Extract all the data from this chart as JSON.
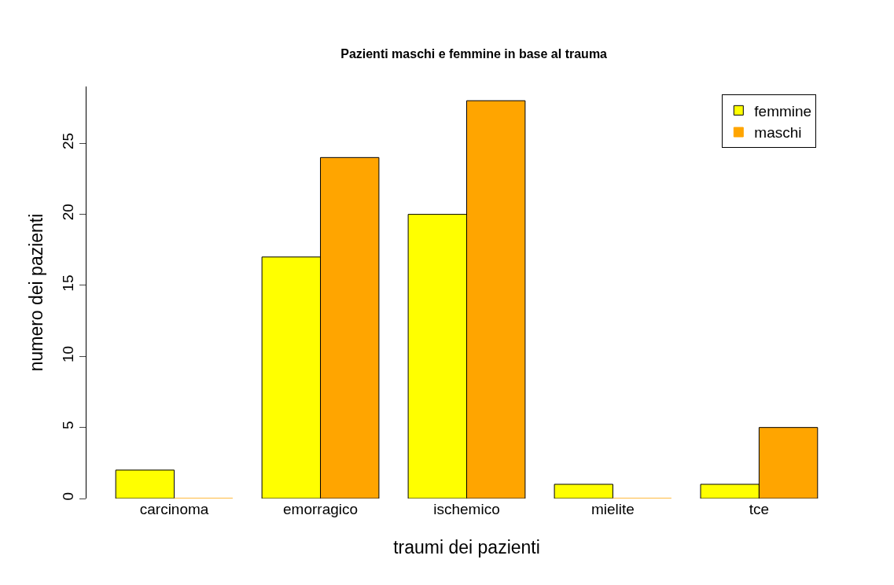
{
  "chart_data": {
    "type": "bar",
    "title": "Pazienti maschi e femmine in base al trauma",
    "xlabel": "traumi dei pazienti",
    "ylabel": "numero dei pazienti",
    "categories": [
      "carcinoma",
      "emorragico",
      "ischemico",
      "mielite",
      "tce"
    ],
    "series": [
      {
        "name": "femmine",
        "color": "#ffff00",
        "values": [
          2,
          17,
          20,
          1,
          1
        ]
      },
      {
        "name": "maschi",
        "color": "#ffa500",
        "values": [
          0,
          24,
          28,
          0,
          5
        ]
      }
    ],
    "ylim": [
      0,
      29
    ],
    "yticks": [
      0,
      5,
      10,
      15,
      20,
      25
    ],
    "legend": "top right"
  }
}
